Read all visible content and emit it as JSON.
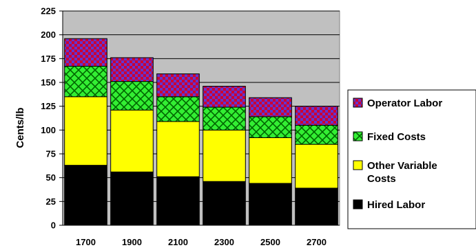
{
  "chart_data": {
    "type": "bar",
    "stacked": true,
    "title": "",
    "xlabel": "",
    "ylabel": "Cents/lb",
    "ylim": [
      0,
      225
    ],
    "yticks": [
      0,
      25,
      50,
      75,
      100,
      125,
      150,
      175,
      200,
      225
    ],
    "grid": true,
    "legend_position": "right",
    "categories": [
      "1700",
      "1900",
      "2100",
      "2300",
      "2500",
      "2700"
    ],
    "series": [
      {
        "name": "Hired Labor",
        "color": "#000000",
        "pattern": "solid",
        "values": [
          63,
          56,
          51,
          46,
          44,
          39
        ]
      },
      {
        "name": "Other Variable Costs",
        "color": "#ffff00",
        "pattern": "solid",
        "values": [
          72,
          65,
          58,
          54,
          48,
          46
        ]
      },
      {
        "name": "Fixed Costs",
        "color": "#33cc33",
        "pattern": "diagonal-crosshatch",
        "values": [
          32,
          30,
          26,
          24,
          22,
          20
        ]
      },
      {
        "name": "Operator Labor",
        "color": "#cc0033",
        "pattern": "checkerboard-blue",
        "values": [
          29,
          25,
          24,
          22,
          20,
          20
        ]
      }
    ],
    "legend_order": [
      "Operator Labor",
      "Fixed Costs",
      "Other Variable Costs",
      "Hired Labor"
    ],
    "plot_background": "#c0c0c0"
  }
}
